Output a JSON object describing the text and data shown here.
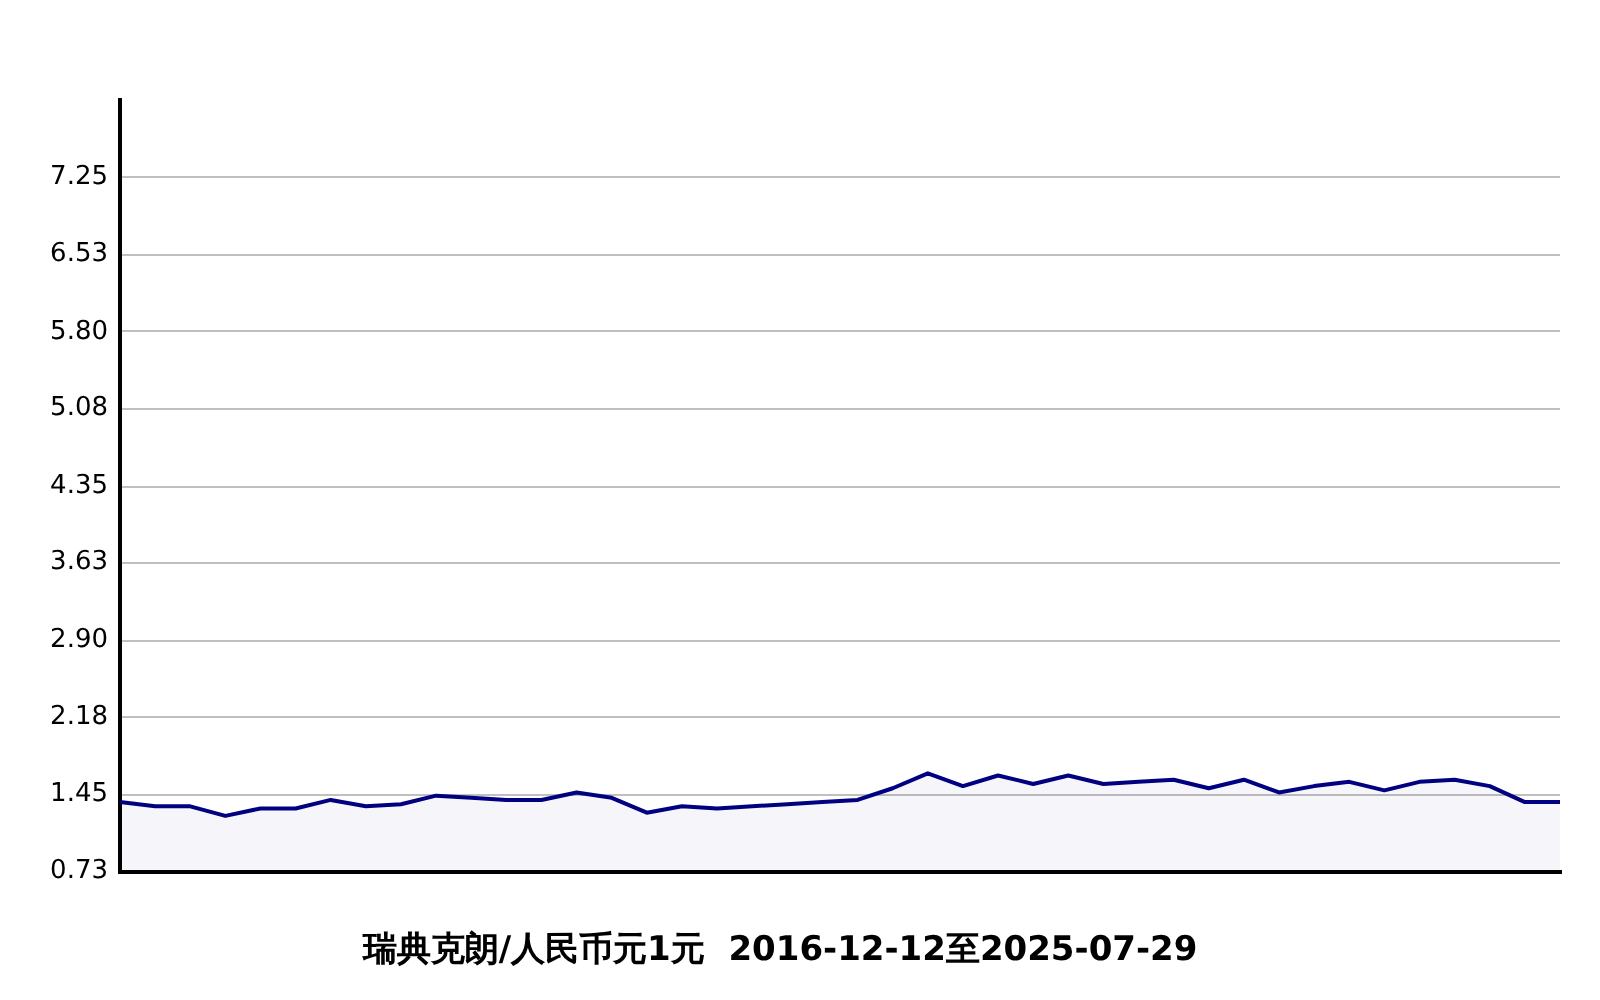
{
  "chart_data": {
    "type": "area",
    "title": "瑞典克朗/人民币元1元  2016-12-12至2025-07-29",
    "categories": [
      null,
      null,
      null,
      null,
      null,
      null,
      null,
      null,
      null,
      null,
      null,
      null,
      null,
      null,
      null,
      null,
      null,
      null,
      null,
      null,
      null,
      null,
      null,
      null,
      null,
      null,
      null,
      null,
      null,
      null,
      null,
      null,
      null,
      null,
      null,
      null,
      null,
      null,
      null,
      null,
      null,
      null
    ],
    "series": [
      {
        "color": "#000080",
        "values": [
          1.38,
          1.34,
          1.34,
          1.25,
          1.32,
          1.32,
          1.4,
          1.34,
          1.36,
          1.44,
          1.42,
          1.4,
          1.4,
          1.47,
          1.42,
          1.28,
          1.34,
          1.32,
          1.34,
          1.36,
          1.38,
          1.4,
          1.51,
          1.65,
          1.53,
          1.63,
          1.55,
          1.63,
          1.55,
          1.57,
          1.59,
          1.51,
          1.59,
          1.47,
          1.53,
          1.57,
          1.49,
          1.57,
          1.59,
          1.53,
          1.38,
          1.38
        ]
      }
    ],
    "ylim": [
      0.73,
      7.98
    ],
    "yticks": [
      0.73,
      1.45,
      2.18,
      {
        "value": 2.9,
        "label": "2.90"
      },
      3.63,
      4.35,
      5.08,
      {
        "value": 5.8,
        "label": "5.80"
      },
      6.53,
      7.25
    ],
    "grid": "y",
    "tick_labels": "y",
    "legend": false,
    "marker": "none"
  }
}
